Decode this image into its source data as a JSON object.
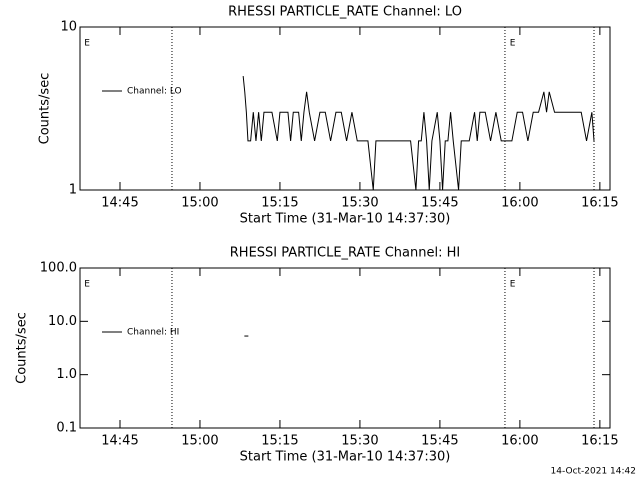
{
  "chart_data": [
    {
      "type": "line",
      "title": "RHESSI PARTICLE_RATE Channel: LO",
      "xlabel": "Start Time (31-Mar-10 14:37:30)",
      "ylabel": "Counts/sec",
      "x": [
        30.6,
        30.9,
        31.2,
        31.5,
        32,
        32.5,
        33,
        33.5,
        34,
        34.5,
        35,
        36,
        37,
        37.5,
        38,
        39,
        39.5,
        40,
        41,
        41.5,
        42,
        42.5,
        43,
        44,
        45,
        46,
        47,
        48,
        49,
        50,
        51,
        52,
        53,
        54,
        55,
        55.5,
        56,
        58,
        60,
        62,
        63,
        63.5,
        64,
        64.5,
        65,
        65.5,
        66,
        67,
        67.5,
        68,
        68.5,
        69,
        69.5,
        70,
        71,
        71.5,
        72,
        73,
        74,
        74.5,
        75,
        76,
        77,
        78,
        79,
        80,
        81,
        82,
        83,
        84,
        85,
        86,
        87,
        87.5,
        88,
        89,
        90,
        91,
        92,
        93,
        94,
        95,
        96,
        96.4
      ],
      "series": [
        {
          "name": "Channel: LO",
          "color": "#000000",
          "values": [
            5,
            4,
            3,
            2,
            2,
            3,
            2,
            3,
            2,
            3,
            3,
            3,
            2,
            3,
            3,
            3,
            2,
            3,
            3,
            2,
            3,
            4,
            3,
            2,
            3,
            3,
            2,
            3,
            3,
            2,
            3,
            2,
            2,
            2,
            1,
            2,
            2,
            2,
            2,
            2,
            1,
            2,
            2,
            3,
            2,
            1,
            2,
            3,
            2,
            1,
            2,
            2,
            3,
            2,
            1,
            2,
            2,
            2,
            3,
            2,
            3,
            3,
            2,
            3,
            2,
            2,
            2,
            3,
            3,
            2,
            3,
            3,
            4,
            3,
            4,
            3,
            3,
            3,
            3,
            3,
            3,
            2,
            3,
            2
          ]
        }
      ],
      "xlim": [
        0,
        99.4
      ],
      "ylim": [
        1,
        10
      ],
      "log_y": true,
      "xticks": [
        {
          "value": 7.5,
          "label": "14:45"
        },
        {
          "value": 22.5,
          "label": "15:00"
        },
        {
          "value": 37.5,
          "label": "15:15"
        },
        {
          "value": 52.5,
          "label": "15:30"
        },
        {
          "value": 67.5,
          "label": "15:45"
        },
        {
          "value": 82.5,
          "label": "16:00"
        },
        {
          "value": 97.5,
          "label": "16:15"
        }
      ],
      "yticks": [
        1,
        10
      ],
      "vlines": [
        17.25,
        79.7,
        96.4
      ],
      "annotations": [
        {
          "text": "E",
          "x": 0.8
        },
        {
          "text": "E",
          "x": 80.6
        }
      ],
      "legend": "upper left"
    },
    {
      "type": "line",
      "title": "RHESSI PARTICLE_RATE Channel: HI",
      "xlabel": "Start Time (31-Mar-10 14:37:30)",
      "ylabel": "Counts/sec",
      "x": [
        31.2
      ],
      "series": [
        {
          "name": "Channel: HI",
          "color": "#000000",
          "values": [
            5.3
          ]
        }
      ],
      "xlim": [
        0,
        99.4
      ],
      "ylim": [
        0.1,
        100
      ],
      "log_y": true,
      "xticks": [
        {
          "value": 7.5,
          "label": "14:45"
        },
        {
          "value": 22.5,
          "label": "15:00"
        },
        {
          "value": 37.5,
          "label": "15:15"
        },
        {
          "value": 52.5,
          "label": "15:30"
        },
        {
          "value": 67.5,
          "label": "15:45"
        },
        {
          "value": 82.5,
          "label": "16:00"
        },
        {
          "value": 97.5,
          "label": "16:15"
        }
      ],
      "yticks": [
        {
          "value": 0.1,
          "label": "0.1"
        },
        {
          "value": 1,
          "label": "1.0"
        },
        {
          "value": 10,
          "label": "10.0"
        },
        {
          "value": 100,
          "label": "100.0"
        }
      ],
      "vlines": [
        17.25,
        79.7,
        96.4
      ],
      "annotations": [
        {
          "text": "E",
          "x": 0.8
        },
        {
          "text": "E",
          "x": 80.6
        }
      ],
      "legend": "upper left"
    }
  ],
  "footer": "14-Oct-2021 14:42"
}
